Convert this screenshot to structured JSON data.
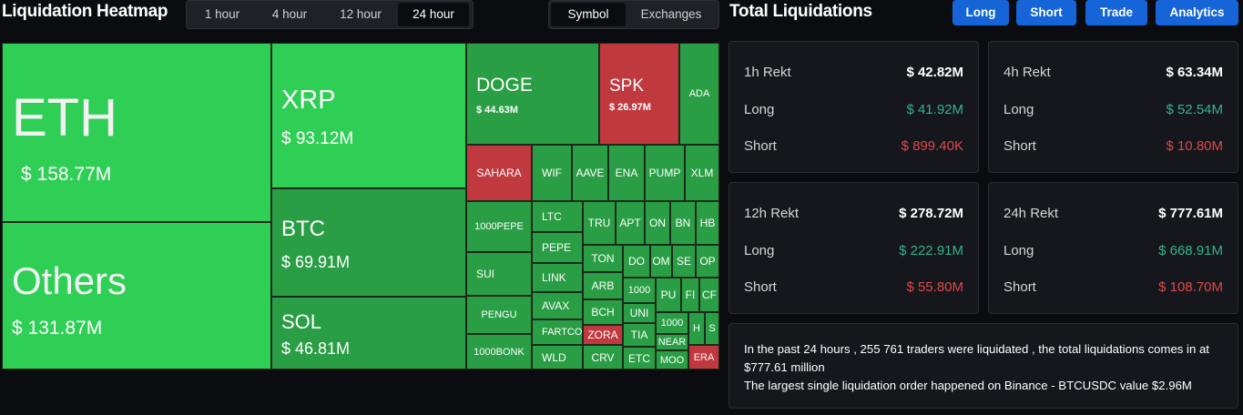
{
  "header": {
    "heatmap_title": "Liquidation Heatmap",
    "time_options": [
      "1 hour",
      "4 hour",
      "12 hour",
      "24 hour"
    ],
    "active_time": "24 hour",
    "mode_options": [
      "Symbol",
      "Exchanges"
    ],
    "active_mode": "Symbol",
    "total_title": "Total Liquidations",
    "buttons": [
      "Long",
      "Short",
      "Trade",
      "Analytics"
    ]
  },
  "treemap": {
    "large": [
      {
        "symbol": "ETH",
        "value": "$ 158.77M"
      },
      {
        "symbol": "Others",
        "value": "$ 131.87M"
      },
      {
        "symbol": "XRP",
        "value": "$ 93.12M"
      },
      {
        "symbol": "BTC",
        "value": "$ 69.91M"
      },
      {
        "symbol": "SOL",
        "value": "$ 46.81M"
      },
      {
        "symbol": "DOGE",
        "value": "$ 44.63M"
      },
      {
        "symbol": "SPK",
        "value": "$ 26.97M"
      }
    ],
    "small": [
      "ADA",
      "SAHARA",
      "WIF",
      "AAVE",
      "ENA",
      "PUMP",
      "XLM",
      "1000PEPE",
      "LTC",
      "TRU",
      "APT",
      "ON",
      "BN",
      "HB",
      "PEPE",
      "TON",
      "DO",
      "OM",
      "SE",
      "OP",
      "SUI",
      "LINK",
      "ARB",
      "1000",
      "PU",
      "FI",
      "CF",
      "PENGU",
      "AVAX",
      "BCH",
      "UNI",
      "1000",
      "H",
      "S",
      "FARTCOI",
      "ZORA",
      "TIA",
      "NEAR",
      "1000BONK",
      "WLD",
      "CRV",
      "ETC",
      "MOO",
      "ERA"
    ]
  },
  "cards": [
    {
      "title": "1h Rekt",
      "total": "$ 42.82M",
      "long_label": "Long",
      "long": "$ 41.92M",
      "short_label": "Short",
      "short": "$ 899.40K"
    },
    {
      "title": "4h Rekt",
      "total": "$ 63.34M",
      "long_label": "Long",
      "long": "$ 52.54M",
      "short_label": "Short",
      "short": "$ 10.80M"
    },
    {
      "title": "12h Rekt",
      "total": "$ 278.72M",
      "long_label": "Long",
      "long": "$ 222.91M",
      "short_label": "Short",
      "short": "$ 55.80M"
    },
    {
      "title": "24h Rekt",
      "total": "$ 777.61M",
      "long_label": "Long",
      "long": "$ 668.91M",
      "short_label": "Short",
      "short": "$ 108.70M"
    }
  ],
  "summary": {
    "line1": "In the past 24 hours , 255 761 traders were liquidated , the total liquidations comes in at $777.61 million",
    "line2": "The largest single liquidation order happened on Binance - BTCUSDC value $2.96M"
  },
  "colors": {
    "green_bright": "#2fcf55",
    "green_mid": "#2eb84e",
    "green_dark": "#2a9e45",
    "red": "#c0393f",
    "button_blue": "#1565d8",
    "long_text": "#33b38a",
    "short_text": "#e04848"
  }
}
